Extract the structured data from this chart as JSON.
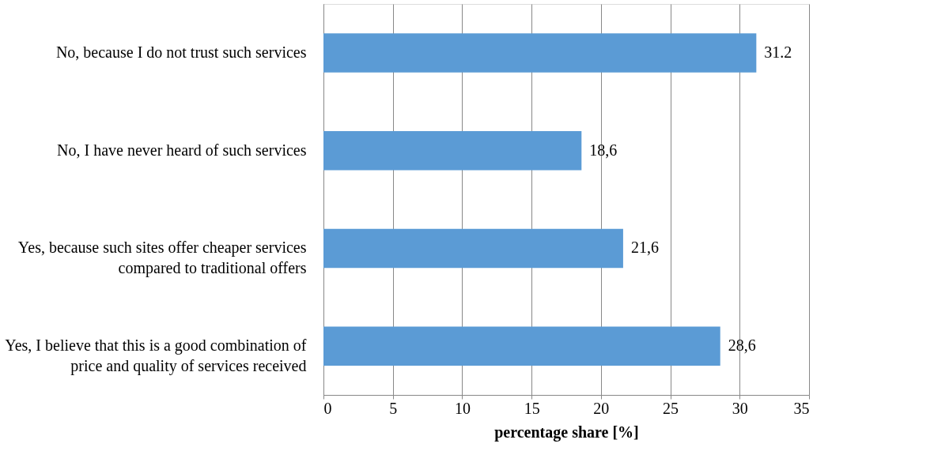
{
  "chart_data": {
    "type": "bar",
    "orientation": "horizontal",
    "xlabel": "percentage share [%]",
    "categories": [
      "No, because I do not trust such services",
      "No, I have never heard of such services",
      "Yes, because such sites offer cheaper services\ncompared to traditional offers",
      "Yes, I believe that this is a good combination of\nprice and quality of services received"
    ],
    "values": [
      31.2,
      18.6,
      21.6,
      28.6
    ],
    "value_labels": [
      "31.2",
      "18,6",
      "21,6",
      "28,6"
    ],
    "color": "#5b9bd5",
    "xlim": [
      0,
      35
    ],
    "xticks": [
      0,
      5,
      10,
      15,
      20,
      25,
      30,
      35
    ],
    "grid": "x"
  }
}
